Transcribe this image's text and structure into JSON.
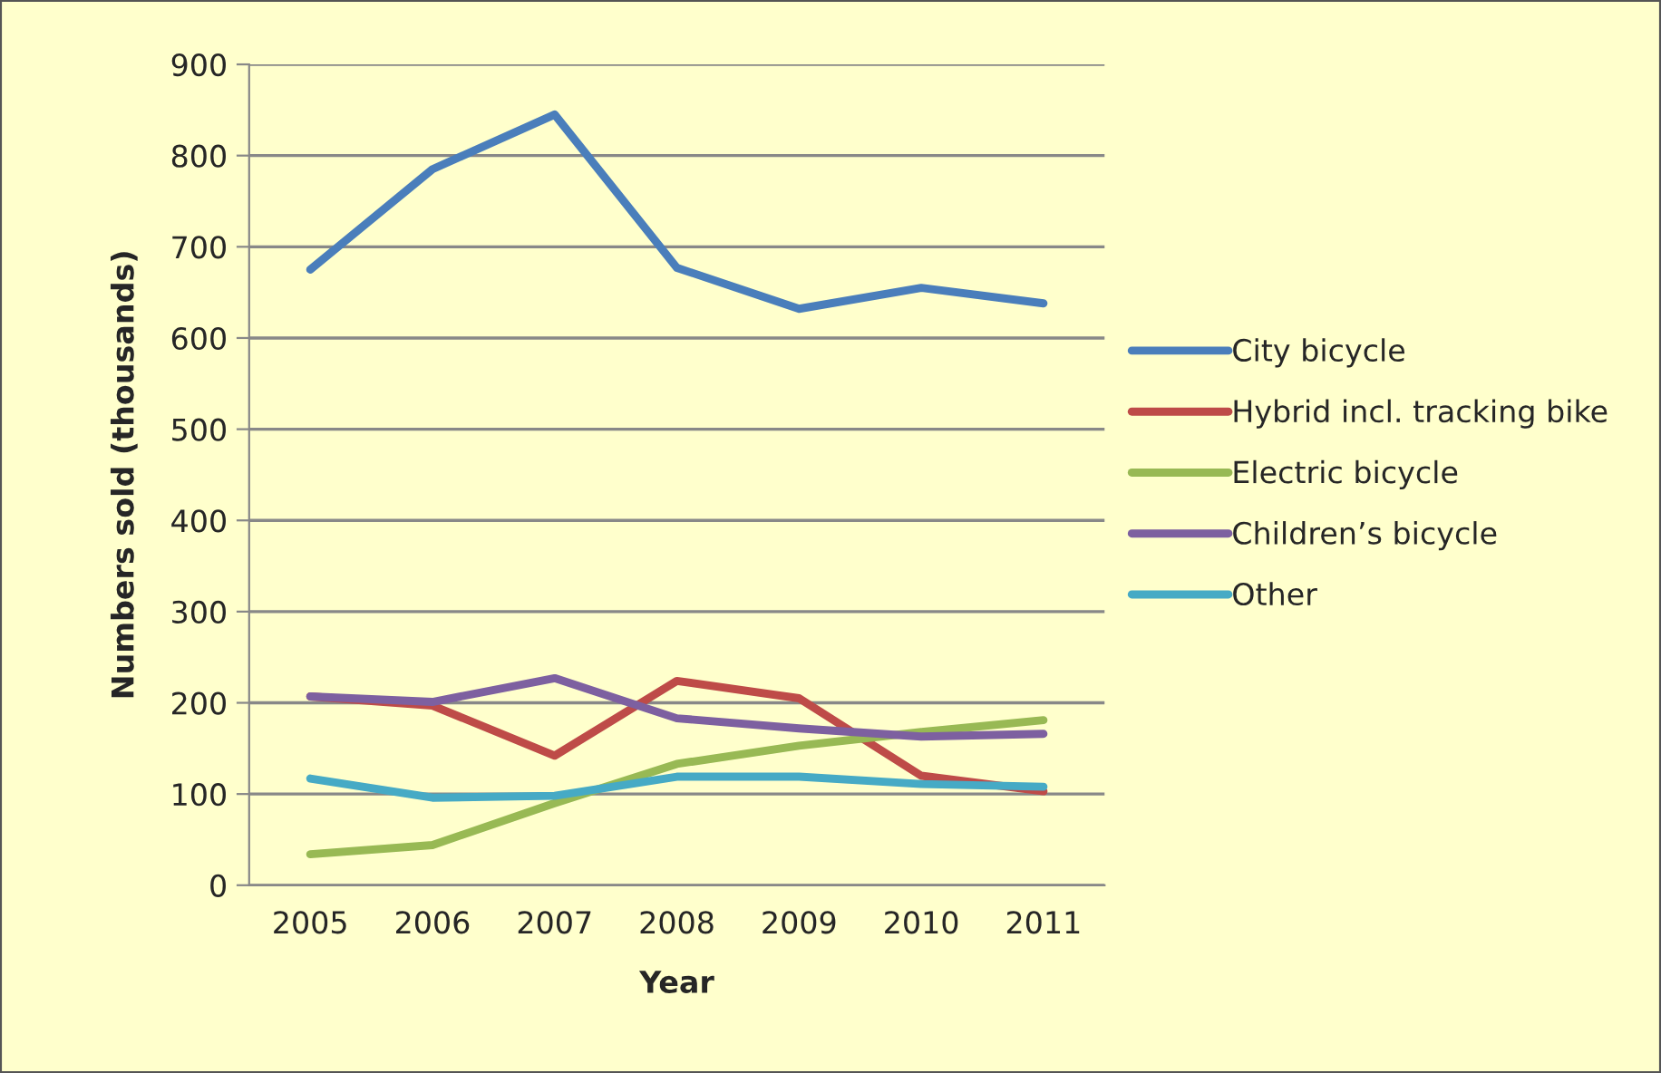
{
  "chart_data": {
    "type": "line",
    "xlabel": "Year",
    "ylabel": "Numbers sold (thousands)",
    "categories": [
      "2005",
      "2006",
      "2007",
      "2008",
      "2009",
      "2010",
      "2011"
    ],
    "series": [
      {
        "name": "City bicycle",
        "color": "#4a7ebb",
        "values": [
          675,
          785,
          845,
          677,
          632,
          655,
          638
        ]
      },
      {
        "name": "Hybrid incl. tracking bike",
        "color": "#be4b48",
        "values": [
          207,
          197,
          142,
          224,
          205,
          120,
          103
        ]
      },
      {
        "name": "Electric bicycle",
        "color": "#98b954",
        "values": [
          34,
          44,
          90,
          133,
          153,
          168,
          181
        ]
      },
      {
        "name": "Children’s bicycle",
        "color": "#7d60a0",
        "values": [
          207,
          201,
          227,
          183,
          172,
          163,
          166
        ]
      },
      {
        "name": "Other",
        "color": "#46aac5",
        "values": [
          117,
          96,
          98,
          119,
          119,
          111,
          108
        ]
      }
    ],
    "ylim": [
      0,
      900
    ],
    "yticks": [
      0,
      100,
      200,
      300,
      400,
      500,
      600,
      700,
      800,
      900
    ],
    "grid": "y",
    "legend": "right",
    "marker": "none",
    "line_style": "solid"
  }
}
